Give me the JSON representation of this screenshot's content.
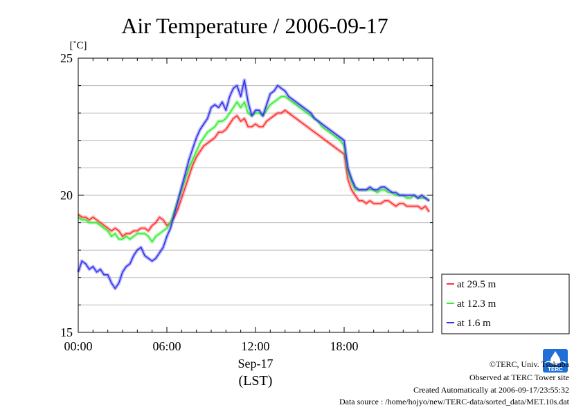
{
  "chart_data": {
    "type": "line",
    "title": "Air Temperature / 2006-09-17",
    "ylabel": "[˚C]",
    "xlabel_date": "Sep-17",
    "xlabel_tz": "(LST)",
    "ylim": [
      15,
      25
    ],
    "xlim_hours": [
      0,
      24
    ],
    "y_ticks": [
      {
        "value": 15,
        "label": "15"
      },
      {
        "value": 20,
        "label": "20"
      },
      {
        "value": 25,
        "label": "25"
      }
    ],
    "x_ticks": [
      {
        "value": 0,
        "label": "00:00"
      },
      {
        "value": 6,
        "label": "06:00"
      },
      {
        "value": 12,
        "label": "12:00"
      },
      {
        "value": 18,
        "label": "18:00"
      }
    ],
    "grid": true,
    "legend_position": "right-bottom",
    "series": [
      {
        "name": "at 29.5 m",
        "color": "#ff3333",
        "x": [
          0.0,
          0.25,
          0.5,
          0.75,
          1.0,
          1.25,
          1.5,
          1.75,
          2.0,
          2.25,
          2.5,
          2.75,
          3.0,
          3.25,
          3.5,
          3.75,
          4.0,
          4.25,
          4.5,
          4.75,
          5.0,
          5.25,
          5.5,
          5.75,
          6.0,
          6.25,
          6.5,
          6.75,
          7.0,
          7.25,
          7.5,
          7.75,
          8.0,
          8.25,
          8.5,
          8.75,
          9.0,
          9.25,
          9.5,
          9.75,
          10.0,
          10.25,
          10.5,
          10.75,
          11.0,
          11.25,
          11.5,
          11.75,
          12.0,
          12.25,
          12.5,
          12.75,
          13.0,
          13.25,
          13.5,
          13.75,
          14.0,
          14.25,
          14.5,
          14.75,
          15.0,
          15.25,
          15.5,
          15.75,
          16.0,
          16.25,
          16.5,
          16.75,
          17.0,
          17.25,
          17.5,
          17.75,
          18.0,
          18.25,
          18.5,
          18.75,
          19.0,
          19.25,
          19.5,
          19.75,
          20.0,
          20.25,
          20.5,
          20.75,
          21.0,
          21.25,
          21.5,
          21.75,
          22.0,
          22.25,
          22.5,
          22.75,
          23.0,
          23.25,
          23.5,
          23.75
        ],
        "values": [
          19.3,
          19.2,
          19.2,
          19.1,
          19.2,
          19.1,
          19.0,
          18.9,
          18.8,
          18.7,
          18.8,
          18.7,
          18.5,
          18.6,
          18.6,
          18.7,
          18.7,
          18.8,
          18.8,
          18.7,
          18.9,
          19.0,
          19.2,
          19.1,
          18.9,
          19.0,
          19.2,
          19.5,
          19.9,
          20.3,
          20.7,
          21.1,
          21.4,
          21.6,
          21.8,
          21.9,
          22.0,
          22.1,
          22.3,
          22.3,
          22.4,
          22.6,
          22.8,
          22.9,
          22.7,
          22.8,
          22.5,
          22.5,
          22.6,
          22.5,
          22.5,
          22.7,
          22.8,
          22.9,
          23.0,
          23.0,
          23.1,
          23.0,
          22.9,
          22.8,
          22.7,
          22.6,
          22.5,
          22.4,
          22.3,
          22.2,
          22.1,
          22.0,
          21.9,
          21.8,
          21.7,
          21.6,
          21.5,
          20.6,
          20.2,
          20.0,
          19.8,
          19.8,
          19.7,
          19.8,
          19.7,
          19.7,
          19.7,
          19.8,
          19.8,
          19.7,
          19.6,
          19.7,
          19.7,
          19.6,
          19.6,
          19.6,
          19.6,
          19.5,
          19.6,
          19.4
        ]
      },
      {
        "name": "at 12.3 m",
        "color": "#33ee33",
        "x": [
          0.0,
          0.25,
          0.5,
          0.75,
          1.0,
          1.25,
          1.5,
          1.75,
          2.0,
          2.25,
          2.5,
          2.75,
          3.0,
          3.25,
          3.5,
          3.75,
          4.0,
          4.25,
          4.5,
          4.75,
          5.0,
          5.25,
          5.5,
          5.75,
          6.0,
          6.25,
          6.5,
          6.75,
          7.0,
          7.25,
          7.5,
          7.75,
          8.0,
          8.25,
          8.5,
          8.75,
          9.0,
          9.25,
          9.5,
          9.75,
          10.0,
          10.25,
          10.5,
          10.75,
          11.0,
          11.25,
          11.5,
          11.75,
          12.0,
          12.25,
          12.5,
          12.75,
          13.0,
          13.25,
          13.5,
          13.75,
          14.0,
          14.25,
          14.5,
          14.75,
          15.0,
          15.25,
          15.5,
          15.75,
          16.0,
          16.25,
          16.5,
          16.75,
          17.0,
          17.25,
          17.5,
          17.75,
          18.0,
          18.25,
          18.5,
          18.75,
          19.0,
          19.25,
          19.5,
          19.75,
          20.0,
          20.25,
          20.5,
          20.75,
          21.0,
          21.25,
          21.5,
          21.75,
          22.0,
          22.25,
          22.5,
          22.75,
          23.0,
          23.25,
          23.5,
          23.75
        ],
        "values": [
          19.2,
          19.1,
          19.1,
          19.0,
          19.0,
          19.0,
          18.9,
          18.8,
          18.7,
          18.5,
          18.6,
          18.4,
          18.4,
          18.5,
          18.4,
          18.5,
          18.6,
          18.6,
          18.6,
          18.5,
          18.3,
          18.5,
          18.6,
          18.7,
          18.8,
          19.0,
          19.4,
          19.8,
          20.2,
          20.6,
          21.0,
          21.3,
          21.6,
          21.9,
          22.1,
          22.3,
          22.4,
          22.5,
          22.7,
          22.7,
          22.8,
          23.0,
          23.2,
          23.4,
          23.2,
          23.4,
          23.0,
          22.9,
          23.0,
          23.0,
          22.9,
          23.1,
          23.3,
          23.4,
          23.5,
          23.6,
          23.6,
          23.5,
          23.4,
          23.3,
          23.2,
          23.1,
          23.0,
          22.9,
          22.8,
          22.7,
          22.5,
          22.4,
          22.3,
          22.2,
          22.1,
          22.0,
          21.8,
          20.9,
          20.5,
          20.2,
          20.2,
          20.2,
          20.2,
          20.2,
          20.2,
          20.1,
          20.2,
          20.2,
          20.1,
          20.1,
          20.0,
          20.0,
          20.0,
          19.9,
          19.9,
          20.0,
          19.9,
          19.9,
          19.9,
          19.8
        ]
      },
      {
        "name": "at 1.6 m",
        "color": "#3333ee",
        "x": [
          0.0,
          0.25,
          0.5,
          0.75,
          1.0,
          1.25,
          1.5,
          1.75,
          2.0,
          2.25,
          2.5,
          2.75,
          3.0,
          3.25,
          3.5,
          3.75,
          4.0,
          4.25,
          4.5,
          4.75,
          5.0,
          5.25,
          5.5,
          5.75,
          6.0,
          6.25,
          6.5,
          6.75,
          7.0,
          7.25,
          7.5,
          7.75,
          8.0,
          8.25,
          8.5,
          8.75,
          9.0,
          9.25,
          9.5,
          9.75,
          10.0,
          10.25,
          10.5,
          10.75,
          11.0,
          11.25,
          11.5,
          11.75,
          12.0,
          12.25,
          12.5,
          12.75,
          13.0,
          13.25,
          13.5,
          13.75,
          14.0,
          14.25,
          14.5,
          14.75,
          15.0,
          15.25,
          15.5,
          15.75,
          16.0,
          16.25,
          16.5,
          16.75,
          17.0,
          17.25,
          17.5,
          17.75,
          18.0,
          18.25,
          18.5,
          18.75,
          19.0,
          19.25,
          19.5,
          19.75,
          20.0,
          20.25,
          20.5,
          20.75,
          21.0,
          21.25,
          21.5,
          21.75,
          22.0,
          22.25,
          22.5,
          22.75,
          23.0,
          23.25,
          23.5,
          23.75
        ],
        "values": [
          17.2,
          17.6,
          17.5,
          17.3,
          17.4,
          17.2,
          17.3,
          17.1,
          17.1,
          16.8,
          16.6,
          16.8,
          17.2,
          17.4,
          17.5,
          17.8,
          18.0,
          18.1,
          17.8,
          17.7,
          17.6,
          17.7,
          17.9,
          18.1,
          18.5,
          18.8,
          19.3,
          19.8,
          20.3,
          20.8,
          21.3,
          21.7,
          22.1,
          22.4,
          22.6,
          22.8,
          23.2,
          23.3,
          23.2,
          23.4,
          23.1,
          23.6,
          23.9,
          24.0,
          23.6,
          24.2,
          23.4,
          22.9,
          23.1,
          23.1,
          22.9,
          23.3,
          23.7,
          23.8,
          24.0,
          23.9,
          23.8,
          23.6,
          23.5,
          23.4,
          23.3,
          23.2,
          23.1,
          23.0,
          22.8,
          22.7,
          22.6,
          22.5,
          22.4,
          22.3,
          22.2,
          22.1,
          22.0,
          21.0,
          20.6,
          20.3,
          20.2,
          20.2,
          20.2,
          20.3,
          20.2,
          20.2,
          20.3,
          20.3,
          20.2,
          20.1,
          20.1,
          20.0,
          20.0,
          20.0,
          20.0,
          20.0,
          19.9,
          20.0,
          19.9,
          19.8
        ]
      }
    ]
  },
  "credits": {
    "copyright": "©TERC, Univ. Tsukuba",
    "observed": "Observed at TERC Tower site",
    "created": "Created Automatically at 2006-09-17/23:55:32",
    "source": "Data source : /home/hojyo/new/TERC-data/sorted_data/MET.10s.dat"
  },
  "logo": {
    "text": "TERC",
    "color": "#1e6fd6"
  }
}
